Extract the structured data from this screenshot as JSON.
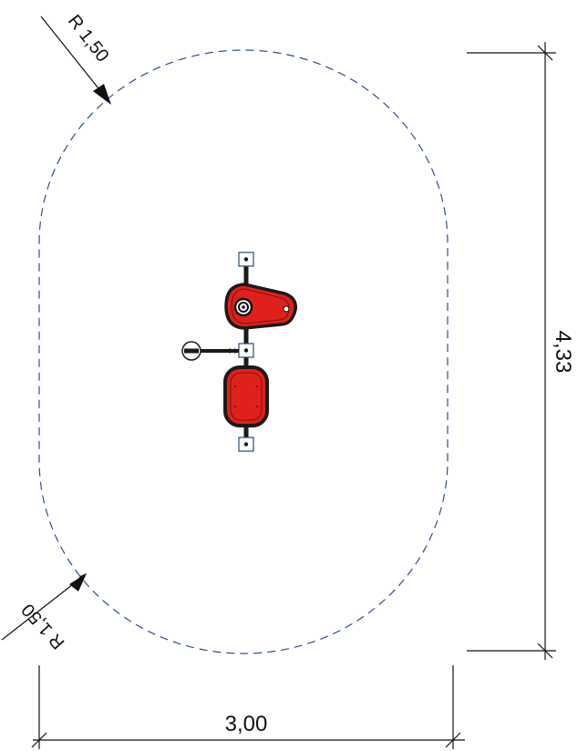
{
  "dimensions": {
    "radius_top": "R 1,50",
    "radius_bottom": "R 1,50",
    "height": "4,33",
    "width": "3,00"
  },
  "colors": {
    "safety_zone": "#2f4f8f",
    "line": "#111111",
    "seat_fill": "#e0201b",
    "seat_outline": "#1a1a1a"
  },
  "icons": {
    "spring_seat_front": "tear-drop-seat-icon",
    "spring_seat_back": "rounded-rect-seat-icon",
    "handle": "handle-bar-icon"
  }
}
